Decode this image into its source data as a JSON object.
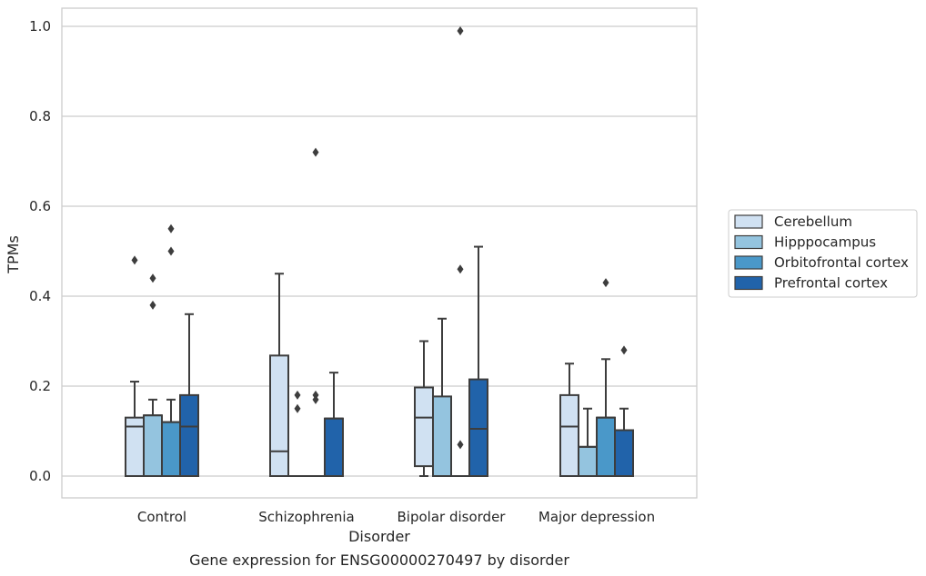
{
  "chart_data": {
    "type": "box",
    "caption": "Gene expression for ENSG00000270497 by disorder",
    "xlabel": "Disorder",
    "ylabel": "TPMs",
    "ylim": [
      -0.05,
      1.04
    ],
    "yticks": [
      0.0,
      0.2,
      0.4,
      0.6,
      0.8,
      1.0
    ],
    "ytick_labels": [
      "0.0",
      "0.2",
      "0.4",
      "0.6",
      "0.8",
      "1.0"
    ],
    "grid": "horizontal",
    "legend_position": "right",
    "categories": [
      "Control",
      "Schizophrenia",
      "Bipolar disorder",
      "Major depression"
    ],
    "series": [
      {
        "name": "Cerebellum",
        "color": "#d0e1f2",
        "boxes": [
          {
            "low": 0.0,
            "q1": 0.0,
            "median": 0.11,
            "q3": 0.13,
            "high": 0.21,
            "outliers": [
              0.48
            ]
          },
          {
            "low": 0.0,
            "q1": 0.0,
            "median": 0.055,
            "q3": 0.268,
            "high": 0.45,
            "outliers": []
          },
          {
            "low": 0.0,
            "q1": 0.022,
            "median": 0.13,
            "q3": 0.197,
            "high": 0.3,
            "outliers": []
          },
          {
            "low": 0.0,
            "q1": 0.0,
            "median": 0.11,
            "q3": 0.18,
            "high": 0.25,
            "outliers": []
          }
        ]
      },
      {
        "name": "Hipppocampus",
        "color": "#94c4df",
        "boxes": [
          {
            "low": 0.0,
            "q1": 0.0,
            "median": 0.135,
            "q3": 0.135,
            "high": 0.17,
            "outliers": [
              0.44,
              0.38
            ]
          },
          {
            "low": 0.0,
            "q1": 0.0,
            "median": 0.0,
            "q3": 0.0,
            "high": 0.0,
            "outliers": [
              0.18,
              0.15
            ]
          },
          {
            "low": 0.0,
            "q1": 0.0,
            "median": 0.0,
            "q3": 0.177,
            "high": 0.35,
            "outliers": []
          },
          {
            "low": 0.0,
            "q1": 0.0,
            "median": 0.065,
            "q3": 0.065,
            "high": 0.15,
            "outliers": []
          }
        ]
      },
      {
        "name": "Orbitofrontal cortex",
        "color": "#4a98c9",
        "boxes": [
          {
            "low": 0.0,
            "q1": 0.0,
            "median": 0.12,
            "q3": 0.12,
            "high": 0.17,
            "outliers": [
              0.55,
              0.5
            ]
          },
          {
            "low": 0.0,
            "q1": 0.0,
            "median": 0.0,
            "q3": 0.0,
            "high": 0.0,
            "outliers": [
              0.72,
              0.18,
              0.17
            ]
          },
          {
            "low": 0.0,
            "q1": 0.0,
            "median": 0.0,
            "q3": 0.0,
            "high": 0.0,
            "outliers": [
              0.99,
              0.46,
              0.07
            ]
          },
          {
            "low": 0.0,
            "q1": 0.0,
            "median": 0.13,
            "q3": 0.13,
            "high": 0.26,
            "outliers": [
              0.43
            ]
          }
        ]
      },
      {
        "name": "Prefrontal cortex",
        "color": "#2163aa",
        "boxes": [
          {
            "low": 0.0,
            "q1": 0.0,
            "median": 0.11,
            "q3": 0.18,
            "high": 0.36,
            "outliers": []
          },
          {
            "low": 0.0,
            "q1": 0.0,
            "median": 0.128,
            "q3": 0.128,
            "high": 0.23,
            "outliers": []
          },
          {
            "low": 0.0,
            "q1": 0.0,
            "median": 0.105,
            "q3": 0.215,
            "high": 0.51,
            "outliers": []
          },
          {
            "low": 0.0,
            "q1": 0.0,
            "median": 0.102,
            "q3": 0.102,
            "high": 0.15,
            "outliers": [
              0.28
            ]
          }
        ]
      }
    ]
  }
}
